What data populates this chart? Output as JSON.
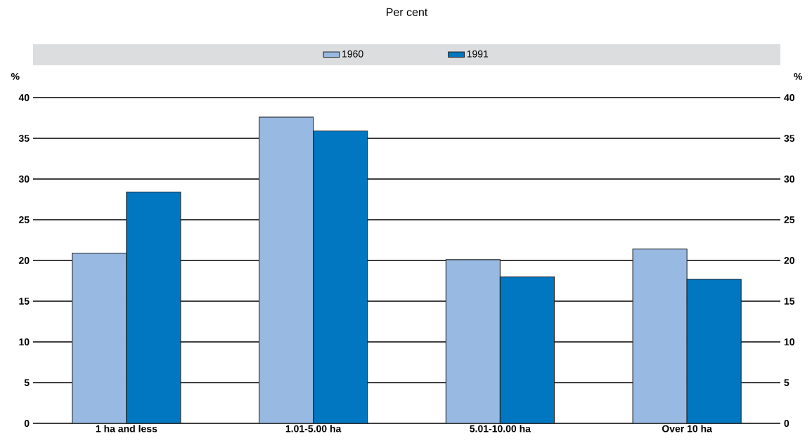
{
  "chart_data": {
    "type": "bar",
    "title": "Per cent",
    "ylabel": "%",
    "y2label": "%",
    "categories": [
      "1 ha and less",
      "1.01-5.00 ha",
      "5.01-10.00 ha",
      "Over 10 ha"
    ],
    "series": [
      {
        "name": "1960",
        "color": "#97b9e2",
        "values": [
          20.9,
          37.6,
          20.1,
          21.4
        ]
      },
      {
        "name": "1991",
        "color": "#0077c0",
        "values": [
          28.4,
          35.9,
          18.0,
          17.7
        ]
      }
    ],
    "ylim": [
      0,
      40
    ],
    "yticks": [
      0,
      5,
      10,
      15,
      20,
      25,
      30,
      35,
      40
    ],
    "y2lim": [
      0,
      40
    ],
    "y2ticks": [
      0,
      5,
      10,
      15,
      20,
      25,
      30,
      35,
      40
    ],
    "grid": "y",
    "legend": "top"
  }
}
